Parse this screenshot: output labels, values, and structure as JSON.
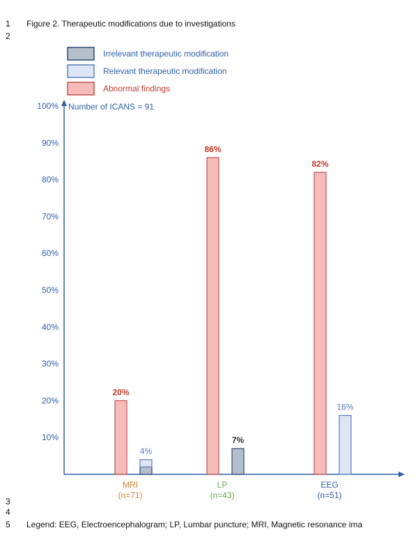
{
  "doc": {
    "lines": [
      {
        "num": "1",
        "text": "Figure 2. Therapeutic modifications due to investigations"
      },
      {
        "num": "2",
        "text": ""
      },
      {
        "num": "3",
        "text": ""
      },
      {
        "num": "4",
        "text": ""
      },
      {
        "num": "5",
        "text": "Legend: EEG, Electroencephalogram; LP, Lumbar puncture; MRI, Magnetic resonance ima"
      }
    ]
  },
  "colors": {
    "abnormal_fill": "#f6bcbc",
    "abnormal_stroke": "#c0504d",
    "relevant_fill": "#dce6f4",
    "relevant_stroke": "#5b7fbf",
    "irrelevant_fill": "#b4bfcc",
    "irrelevant_stroke": "#2d4a74",
    "axis": "#2e5fa8",
    "tick_text": "#2e5fa8",
    "mri_label": "#d08030",
    "lp_label": "#6aa84f",
    "eeg_label": "#2e5fa8",
    "abnormal_label": "#c0392b"
  },
  "chart_data": {
    "type": "bar",
    "annotation": "Number of ICANS = 91",
    "ylim": [
      0,
      100
    ],
    "yticks": [
      "100%",
      "90%",
      "80%",
      "70%",
      "60%",
      "50%",
      "40%",
      "30%",
      "20%",
      "10%"
    ],
    "categories": [
      {
        "name": "MRI",
        "n": "(n=71)"
      },
      {
        "name": "LP",
        "n": "(n=43)"
      },
      {
        "name": "EEG",
        "n": "(n=51)"
      }
    ],
    "series": [
      {
        "name": "Irrelevant therapeutic modification",
        "key": "irrelevant"
      },
      {
        "name": "Relevant therapeutic modification",
        "key": "relevant"
      },
      {
        "name": "Abnormal findings",
        "key": "abnormal"
      }
    ],
    "bars": [
      {
        "category": "MRI",
        "abnormal": 20,
        "abnormal_label": "20%",
        "modification_label": "4%",
        "stack": [
          {
            "key": "irrelevant",
            "value": 2
          },
          {
            "key": "relevant",
            "value": 2
          }
        ]
      },
      {
        "category": "LP",
        "abnormal": 86,
        "abnormal_label": "86%",
        "modification_label": "7%",
        "stack": [
          {
            "key": "irrelevant",
            "value": 7
          }
        ]
      },
      {
        "category": "EEG",
        "abnormal": 82,
        "abnormal_label": "82%",
        "modification_label": "16%",
        "stack": [
          {
            "key": "relevant",
            "value": 16
          }
        ]
      }
    ]
  }
}
